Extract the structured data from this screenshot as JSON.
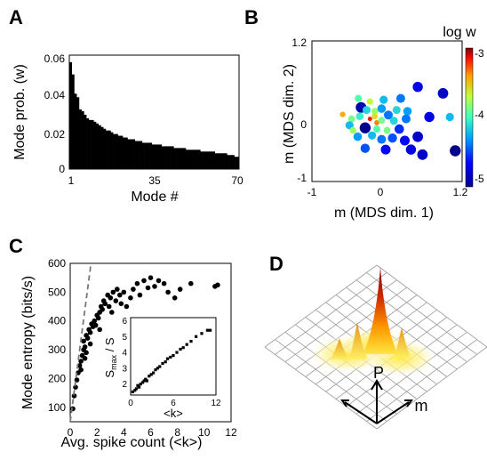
{
  "panels": {
    "a": {
      "letter": "A"
    },
    "b": {
      "letter": "B"
    },
    "c": {
      "letter": "C"
    },
    "d": {
      "letter": "D"
    }
  },
  "chart_data": [
    {
      "panel": "A",
      "type": "bar",
      "xlabel": "Mode #",
      "ylabel": "Mode prob. (w)",
      "xticks": [
        "1",
        "35",
        "70"
      ],
      "yticks": [
        "0",
        "0.02",
        "0.04",
        "0.06"
      ],
      "xlim": [
        1,
        70
      ],
      "ylim": [
        0,
        0.065
      ],
      "values": [
        0.061,
        0.054,
        0.043,
        0.041,
        0.034,
        0.033,
        0.031,
        0.029,
        0.028,
        0.028,
        0.027,
        0.026,
        0.025,
        0.024,
        0.023,
        0.022,
        0.022,
        0.021,
        0.02,
        0.02,
        0.019,
        0.019,
        0.018,
        0.018,
        0.017,
        0.017,
        0.017,
        0.016,
        0.016,
        0.016,
        0.015,
        0.015,
        0.015,
        0.015,
        0.014,
        0.014,
        0.014,
        0.014,
        0.013,
        0.013,
        0.013,
        0.013,
        0.013,
        0.012,
        0.012,
        0.012,
        0.012,
        0.012,
        0.011,
        0.011,
        0.011,
        0.011,
        0.011,
        0.011,
        0.01,
        0.01,
        0.01,
        0.01,
        0.01,
        0.01,
        0.009,
        0.009,
        0.009,
        0.009,
        0.009,
        0.008,
        0.008,
        0.008,
        0.007,
        0.007
      ]
    },
    {
      "panel": "B",
      "type": "scatter",
      "xlabel": "m (MDS dim. 1)",
      "ylabel": "m (MDS dim. 2)",
      "xticks": [
        "-1",
        "0",
        "1.2"
      ],
      "yticks": [
        "1.2",
        "0",
        "-1"
      ],
      "xlim": [
        -1,
        1.2
      ],
      "ylim": [
        -1,
        1.2
      ],
      "colorbar": {
        "title": "log w",
        "ticks": [
          "-3",
          "-4",
          "-5"
        ],
        "range": [
          -5.2,
          -2.9
        ]
      },
      "points": [
        {
          "x": 0.55,
          "y": 0.48,
          "c": -4.9
        },
        {
          "x": 0.92,
          "y": 0.38,
          "c": -5.0
        },
        {
          "x": 0.3,
          "y": 0.3,
          "c": -4.5
        },
        {
          "x": 0.05,
          "y": 0.28,
          "c": -4.3
        },
        {
          "x": -0.32,
          "y": 0.3,
          "c": -4.0
        },
        {
          "x": -0.15,
          "y": 0.25,
          "c": -3.7
        },
        {
          "x": -0.28,
          "y": 0.16,
          "c": -5.1
        },
        {
          "x": 0.02,
          "y": 0.14,
          "c": -4.4
        },
        {
          "x": 0.24,
          "y": 0.12,
          "c": -4.2
        },
        {
          "x": -0.08,
          "y": 0.1,
          "c": -3.8
        },
        {
          "x": 0.12,
          "y": 0.04,
          "c": -4.5
        },
        {
          "x": 0.4,
          "y": 0.1,
          "c": -4.4
        },
        {
          "x": -0.55,
          "y": 0.05,
          "c": -3.4
        },
        {
          "x": -0.42,
          "y": -0.02,
          "c": -3.9
        },
        {
          "x": -0.3,
          "y": 0.02,
          "c": -4.1
        },
        {
          "x": -0.15,
          "y": -0.02,
          "c": -3.1
        },
        {
          "x": -0.08,
          "y": 0.02,
          "c": -3.6
        },
        {
          "x": -0.05,
          "y": -0.08,
          "c": -3.3
        },
        {
          "x": 0.02,
          "y": -0.04,
          "c": -3.9
        },
        {
          "x": 0.2,
          "y": -0.05,
          "c": -4.2
        },
        {
          "x": 0.38,
          "y": -0.02,
          "c": -4.5
        },
        {
          "x": 0.72,
          "y": 0.01,
          "c": -4.9
        },
        {
          "x": 1.02,
          "y": 0.01,
          "c": -4.3
        },
        {
          "x": -0.45,
          "y": -0.12,
          "c": -4.3
        },
        {
          "x": -0.22,
          "y": -0.16,
          "c": -5.2
        },
        {
          "x": -0.05,
          "y": -0.18,
          "c": -4.0
        },
        {
          "x": 0.1,
          "y": -0.2,
          "c": -3.9
        },
        {
          "x": 0.28,
          "y": -0.18,
          "c": -4.7
        },
        {
          "x": -0.33,
          "y": -0.3,
          "c": -4.4
        },
        {
          "x": -0.12,
          "y": -0.28,
          "c": -4.3
        },
        {
          "x": 0.02,
          "y": -0.34,
          "c": -4.5
        },
        {
          "x": 0.18,
          "y": -0.32,
          "c": -4.6
        },
        {
          "x": 0.36,
          "y": -0.36,
          "c": -4.8
        },
        {
          "x": 0.55,
          "y": -0.3,
          "c": -5.0
        },
        {
          "x": -0.22,
          "y": -0.48,
          "c": -4.6
        },
        {
          "x": 0.08,
          "y": -0.5,
          "c": -4.8
        },
        {
          "x": 0.45,
          "y": -0.5,
          "c": -4.9
        },
        {
          "x": 1.1,
          "y": -0.52,
          "c": -5.2
        },
        {
          "x": 0.62,
          "y": -0.58,
          "c": -5.0
        },
        {
          "x": -0.4,
          "y": -0.2,
          "c": -3.8
        },
        {
          "x": -0.2,
          "y": 0.12,
          "c": -4.2
        }
      ]
    },
    {
      "panel": "C",
      "type": "scatter",
      "xlabel": "Avg. spike count (<k>)",
      "ylabel": "Mode entropy (bits/s)",
      "xticks": [
        "0",
        "2",
        "4",
        "6",
        "8",
        "10",
        "12"
      ],
      "yticks": [
        "100",
        "200",
        "300",
        "400",
        "500",
        "600"
      ],
      "xlim": [
        0,
        12
      ],
      "ylim": [
        50,
        600
      ],
      "points": [
        {
          "x": 0.2,
          "y": 95
        },
        {
          "x": 0.3,
          "y": 140
        },
        {
          "x": 0.4,
          "y": 170
        },
        {
          "x": 0.5,
          "y": 195
        },
        {
          "x": 0.6,
          "y": 220
        },
        {
          "x": 0.7,
          "y": 245
        },
        {
          "x": 0.8,
          "y": 260
        },
        {
          "x": 0.9,
          "y": 280
        },
        {
          "x": 1.0,
          "y": 300
        },
        {
          "x": 1.0,
          "y": 330
        },
        {
          "x": 1.1,
          "y": 310
        },
        {
          "x": 1.2,
          "y": 350
        },
        {
          "x": 1.3,
          "y": 340
        },
        {
          "x": 1.4,
          "y": 370
        },
        {
          "x": 1.5,
          "y": 360
        },
        {
          "x": 1.6,
          "y": 390
        },
        {
          "x": 1.7,
          "y": 380
        },
        {
          "x": 1.8,
          "y": 400
        },
        {
          "x": 1.9,
          "y": 385
        },
        {
          "x": 2.0,
          "y": 420
        },
        {
          "x": 2.1,
          "y": 410
        },
        {
          "x": 2.2,
          "y": 430
        },
        {
          "x": 2.3,
          "y": 450
        },
        {
          "x": 2.4,
          "y": 440
        },
        {
          "x": 2.5,
          "y": 470
        },
        {
          "x": 2.6,
          "y": 460
        },
        {
          "x": 2.8,
          "y": 490
        },
        {
          "x": 2.9,
          "y": 450
        },
        {
          "x": 3.0,
          "y": 480
        },
        {
          "x": 3.2,
          "y": 500
        },
        {
          "x": 3.4,
          "y": 470
        },
        {
          "x": 3.5,
          "y": 510
        },
        {
          "x": 3.7,
          "y": 490
        },
        {
          "x": 3.8,
          "y": 460
        },
        {
          "x": 4.0,
          "y": 500
        },
        {
          "x": 4.2,
          "y": 450
        },
        {
          "x": 4.5,
          "y": 480
        },
        {
          "x": 4.7,
          "y": 510
        },
        {
          "x": 5.0,
          "y": 530
        },
        {
          "x": 5.2,
          "y": 490
        },
        {
          "x": 5.5,
          "y": 540
        },
        {
          "x": 5.8,
          "y": 515
        },
        {
          "x": 6.0,
          "y": 550
        },
        {
          "x": 6.3,
          "y": 520
        },
        {
          "x": 6.6,
          "y": 540
        },
        {
          "x": 7.0,
          "y": 530
        },
        {
          "x": 7.3,
          "y": 500
        },
        {
          "x": 7.8,
          "y": 480
        },
        {
          "x": 8.2,
          "y": 510
        },
        {
          "x": 9.0,
          "y": 530
        },
        {
          "x": 10.8,
          "y": 520
        },
        {
          "x": 11.0,
          "y": 525
        },
        {
          "x": 1.2,
          "y": 290
        },
        {
          "x": 1.5,
          "y": 320
        },
        {
          "x": 2.2,
          "y": 370
        },
        {
          "x": 3.1,
          "y": 430
        },
        {
          "x": 0.8,
          "y": 230
        },
        {
          "x": 1.1,
          "y": 270
        }
      ],
      "reference_line": {
        "style": "dashed",
        "x": [
          0,
          1.55
        ],
        "y": [
          50,
          600
        ]
      },
      "inset": {
        "xlabel": "<k>",
        "ylabel": "S_max / S",
        "xticks": [
          "0",
          "6",
          "12"
        ],
        "yticks": [
          "2",
          "3",
          "4",
          "5",
          "6"
        ],
        "xlim": [
          0,
          12
        ],
        "ylim": [
          1.3,
          6.2
        ],
        "points": [
          {
            "x": 0.3,
            "y": 1.5
          },
          {
            "x": 0.6,
            "y": 1.6
          },
          {
            "x": 0.8,
            "y": 1.7
          },
          {
            "x": 1.0,
            "y": 1.9
          },
          {
            "x": 1.2,
            "y": 1.8
          },
          {
            "x": 1.4,
            "y": 2.0
          },
          {
            "x": 1.7,
            "y": 2.1
          },
          {
            "x": 1.9,
            "y": 2.2
          },
          {
            "x": 2.1,
            "y": 2.3
          },
          {
            "x": 2.3,
            "y": 2.2
          },
          {
            "x": 2.6,
            "y": 2.5
          },
          {
            "x": 2.9,
            "y": 2.6
          },
          {
            "x": 3.2,
            "y": 2.7
          },
          {
            "x": 3.5,
            "y": 2.9
          },
          {
            "x": 3.8,
            "y": 3.0
          },
          {
            "x": 4.1,
            "y": 3.1
          },
          {
            "x": 4.5,
            "y": 3.3
          },
          {
            "x": 4.9,
            "y": 3.4
          },
          {
            "x": 5.2,
            "y": 3.6
          },
          {
            "x": 5.6,
            "y": 3.7
          },
          {
            "x": 6.0,
            "y": 3.8
          },
          {
            "x": 6.5,
            "y": 4.0
          },
          {
            "x": 7.0,
            "y": 4.2
          },
          {
            "x": 7.4,
            "y": 4.3
          },
          {
            "x": 7.9,
            "y": 4.5
          },
          {
            "x": 8.5,
            "y": 4.7
          },
          {
            "x": 9.2,
            "y": 5.0
          },
          {
            "x": 10.0,
            "y": 5.2
          },
          {
            "x": 10.8,
            "y": 5.4
          },
          {
            "x": 11.2,
            "y": 5.4
          }
        ]
      }
    }
  ],
  "panel_d": {
    "axis_label_p": "P",
    "axis_label_m": "m"
  }
}
